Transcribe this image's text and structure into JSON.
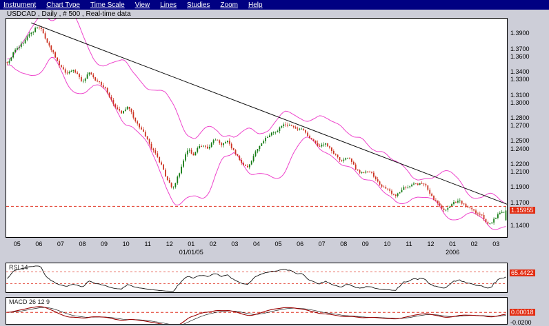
{
  "menu": {
    "items": [
      "Instrument",
      "Chart Type",
      "Time Scale",
      "View",
      "Lines",
      "Studies",
      "Zoom",
      "Help"
    ]
  },
  "header": {
    "title": "USDCAD , Daily , # 500 , Real-time data"
  },
  "main_chart": {
    "price_axis": {
      "min": 1.125,
      "max": 1.409,
      "labels": [
        {
          "text": "1.3900",
          "price": 1.39
        },
        {
          "text": "1.3700",
          "price": 1.37
        },
        {
          "text": "1.3600",
          "price": 1.36
        },
        {
          "text": "1.3400",
          "price": 1.34
        },
        {
          "text": "1.3300",
          "price": 1.33
        },
        {
          "text": "1.3100",
          "price": 1.31
        },
        {
          "text": "1.3000",
          "price": 1.3
        },
        {
          "text": "1.2800",
          "price": 1.28
        },
        {
          "text": "1.2700",
          "price": 1.27
        },
        {
          "text": "1.2500",
          "price": 1.25
        },
        {
          "text": "1.2400",
          "price": 1.24
        },
        {
          "text": "1.2200",
          "price": 1.22
        },
        {
          "text": "1.2100",
          "price": 1.21
        },
        {
          "text": "1.1900",
          "price": 1.19
        },
        {
          "text": "1.1700",
          "price": 1.17
        },
        {
          "text": "1.1400",
          "price": 1.14
        }
      ],
      "current": {
        "text": "1.15955",
        "price": 1.15955
      }
    },
    "x_axis": {
      "months": [
        "05",
        "06",
        "07",
        "08",
        "09",
        "10",
        "11",
        "12",
        "01",
        "02",
        "03",
        "04",
        "05",
        "06",
        "07",
        "08",
        "09",
        "10",
        "11",
        "12",
        "01",
        "02",
        "03"
      ],
      "annotations": [
        {
          "text": "01/01/05",
          "month_index": 8
        },
        {
          "text": "2006",
          "month_index": 20
        }
      ]
    },
    "overlays": {
      "trendline": {
        "from": [
          0.05,
          1.4035
        ],
        "to": [
          1.0,
          1.1677
        ]
      },
      "horizontal_line": {
        "price": 1.165
      }
    }
  },
  "chart_data": {
    "type": "candlestick",
    "symbol": "USDCAD",
    "timeframe": "Daily",
    "bars_shown": 500,
    "visible_price_range": [
      1.125,
      1.409
    ],
    "studies": [
      "Bollinger Bands",
      "RSI",
      "MACD"
    ],
    "price_path": [
      [
        0.0,
        1.352
      ],
      [
        0.02,
        1.372
      ],
      [
        0.048,
        1.39
      ],
      [
        0.058,
        1.397
      ],
      [
        0.07,
        1.391
      ],
      [
        0.087,
        1.37
      ],
      [
        0.105,
        1.348
      ],
      [
        0.119,
        1.334
      ],
      [
        0.132,
        1.343
      ],
      [
        0.15,
        1.327
      ],
      [
        0.164,
        1.339
      ],
      [
        0.181,
        1.326
      ],
      [
        0.197,
        1.318
      ],
      [
        0.215,
        1.299
      ],
      [
        0.229,
        1.29
      ],
      [
        0.243,
        1.294
      ],
      [
        0.258,
        1.276
      ],
      [
        0.27,
        1.267
      ],
      [
        0.284,
        1.249
      ],
      [
        0.298,
        1.231
      ],
      [
        0.312,
        1.214
      ],
      [
        0.323,
        1.196
      ],
      [
        0.332,
        1.189
      ],
      [
        0.343,
        1.205
      ],
      [
        0.353,
        1.222
      ],
      [
        0.363,
        1.238
      ],
      [
        0.374,
        1.231
      ],
      [
        0.388,
        1.245
      ],
      [
        0.401,
        1.24
      ],
      [
        0.415,
        1.252
      ],
      [
        0.429,
        1.245
      ],
      [
        0.443,
        1.254
      ],
      [
        0.454,
        1.24
      ],
      [
        0.468,
        1.222
      ],
      [
        0.481,
        1.214
      ],
      [
        0.495,
        1.231
      ],
      [
        0.509,
        1.249
      ],
      [
        0.526,
        1.258
      ],
      [
        0.542,
        1.267
      ],
      [
        0.56,
        1.273
      ],
      [
        0.574,
        1.27
      ],
      [
        0.594,
        1.267
      ],
      [
        0.608,
        1.254
      ],
      [
        0.625,
        1.245
      ],
      [
        0.639,
        1.249
      ],
      [
        0.652,
        1.236
      ],
      [
        0.67,
        1.222
      ],
      [
        0.684,
        1.227
      ],
      [
        0.698,
        1.213
      ],
      [
        0.716,
        1.205
      ],
      [
        0.73,
        1.211
      ],
      [
        0.743,
        1.198
      ],
      [
        0.76,
        1.187
      ],
      [
        0.777,
        1.179
      ],
      [
        0.79,
        1.184
      ],
      [
        0.804,
        1.191
      ],
      [
        0.818,
        1.199
      ],
      [
        0.836,
        1.196
      ],
      [
        0.85,
        1.182
      ],
      [
        0.863,
        1.169
      ],
      [
        0.877,
        1.16
      ],
      [
        0.891,
        1.166
      ],
      [
        0.905,
        1.171
      ],
      [
        0.919,
        1.164
      ],
      [
        0.932,
        1.16
      ],
      [
        0.946,
        1.153
      ],
      [
        0.96,
        1.146
      ],
      [
        0.97,
        1.144
      ],
      [
        0.981,
        1.151
      ],
      [
        0.992,
        1.16
      ],
      [
        1.0,
        1.1596
      ]
    ]
  },
  "rsi": {
    "label": "RSI 14",
    "value": "65.4422",
    "value_num": 65.4422,
    "levels": [
      70,
      30
    ]
  },
  "macd": {
    "label": "MACD 26 12 9",
    "value": "0.00018",
    "value_num": 0.00018,
    "axis_label": {
      "text": "-0.0200",
      "value": -0.02
    },
    "range": [
      0.028,
      -0.022
    ]
  },
  "colors": {
    "up": "#157c15",
    "down": "#cc3322",
    "bollinger": "#ee44cc",
    "trendline": "#111111",
    "alert": "#e03322",
    "rsi_line": "#111111",
    "macd_line": "#990000",
    "signal_line": "#222222",
    "badge_bg": "#e22d12",
    "menubar_bg": "#000082"
  }
}
